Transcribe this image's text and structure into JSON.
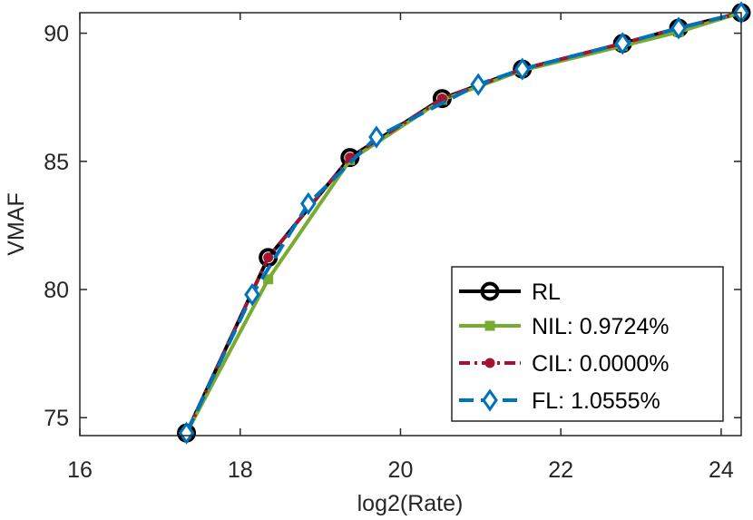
{
  "chart_data": {
    "type": "line",
    "xlabel": "log2(Rate)",
    "ylabel": "VMAF",
    "xlim": [
      16,
      24.25
    ],
    "ylim": [
      74.3,
      90.8
    ],
    "xticks": [
      16,
      18,
      20,
      22,
      24
    ],
    "yticks": [
      75,
      80,
      85,
      90
    ],
    "xtick_labels": [
      "16",
      "18",
      "20",
      "22",
      "24"
    ],
    "ytick_labels": [
      "75",
      "80",
      "85",
      "90"
    ],
    "grid": false,
    "legend_position": "bottom-right",
    "series": [
      {
        "name": "RL",
        "legend_label": "RL",
        "color": "#000000",
        "marker": "circle",
        "line_style": "solid",
        "x": [
          17.33,
          18.35,
          19.37,
          20.52,
          21.52,
          22.77,
          23.47,
          24.25
        ],
        "y": [
          74.4,
          81.25,
          85.15,
          87.45,
          88.6,
          89.6,
          90.2,
          90.8
        ]
      },
      {
        "name": "NIL",
        "legend_label": "NIL: 0.9724%",
        "color": "#77ac30",
        "marker": "square",
        "line_style": "solid",
        "x": [
          17.33,
          18.35,
          19.37,
          20.52,
          21.52,
          22.77,
          23.47,
          24.25
        ],
        "y": [
          74.4,
          80.4,
          85.05,
          87.4,
          88.55,
          89.5,
          90.05,
          90.8
        ]
      },
      {
        "name": "CIL",
        "legend_label": "CIL: 0.0000%",
        "color": "#a2142f",
        "marker": "dot",
        "line_style": "dashdot",
        "x": [
          17.33,
          18.35,
          19.37,
          20.52,
          21.52,
          22.77,
          23.47,
          24.25
        ],
        "y": [
          74.4,
          81.25,
          85.15,
          87.45,
          88.6,
          89.6,
          90.2,
          90.8
        ]
      },
      {
        "name": "FL",
        "legend_label": "FL: 1.0555%",
        "color": "#0072bd",
        "marker": "diamond",
        "line_style": "dashed",
        "x": [
          17.33,
          18.15,
          18.85,
          19.7,
          20.97,
          21.52,
          22.77,
          23.47,
          24.25
        ],
        "y": [
          74.4,
          79.8,
          83.35,
          85.95,
          88.0,
          88.6,
          89.6,
          90.2,
          90.8
        ]
      }
    ]
  }
}
